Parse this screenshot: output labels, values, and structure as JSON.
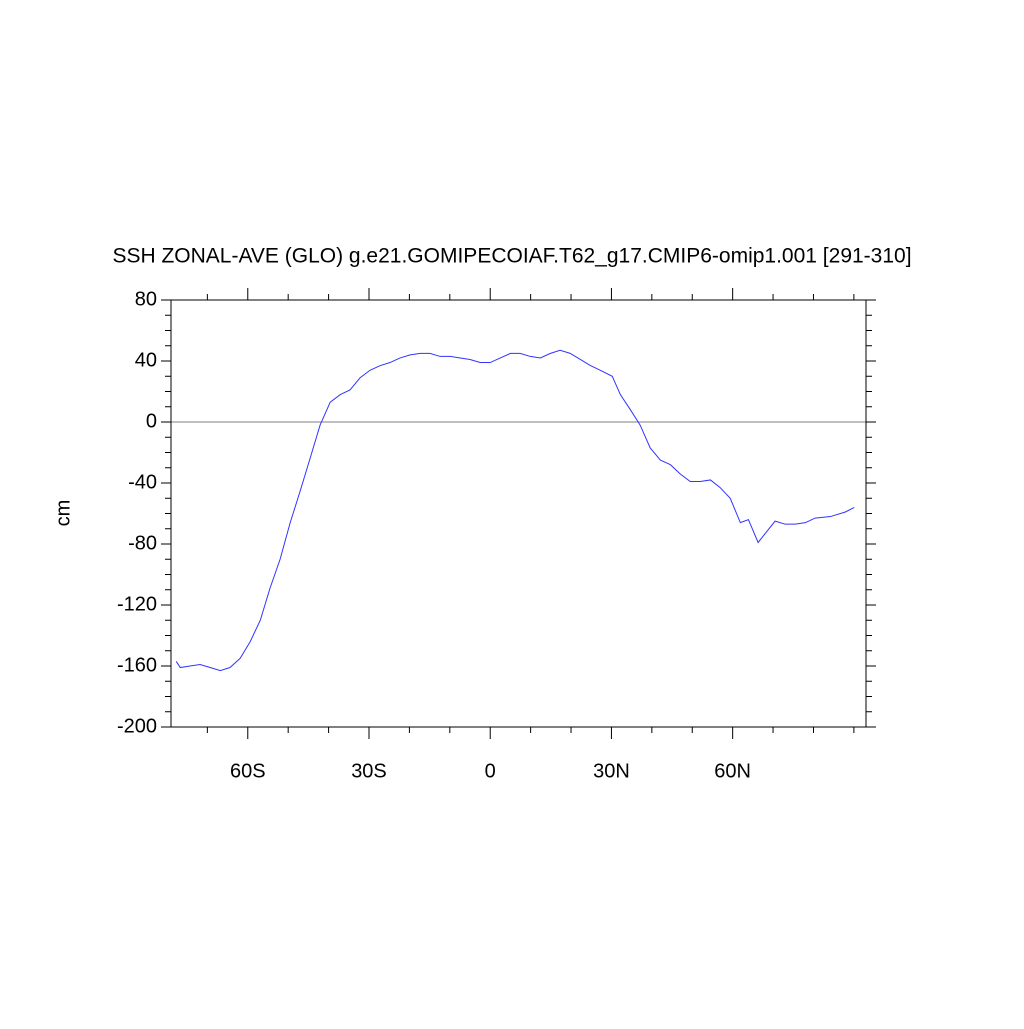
{
  "chart_data": {
    "type": "line",
    "title": "SSH ZONAL-AVE (GLO) g.e21.GOMIPECOIAF.T62_g17.CMIP6-omip1.001 [291-310]",
    "y_label": "cm",
    "x": [
      -77.7,
      -76.7,
      -74.3,
      -71.8,
      -69.3,
      -66.8,
      -64.4,
      -61.9,
      -59.4,
      -56.9,
      -54.5,
      -52,
      -49.5,
      -47,
      -44.6,
      -42.1,
      -39.6,
      -37.1,
      -34.7,
      -32.2,
      -29.7,
      -27.2,
      -24.8,
      -22.3,
      -19.8,
      -17.3,
      -14.9,
      -12.4,
      -9.9,
      -7.4,
      -5,
      -2.5,
      0,
      2.5,
      5,
      7.4,
      9.9,
      12.4,
      14.9,
      17.3,
      19.8,
      22.3,
      24.8,
      27.2,
      30.2,
      32.2,
      34.7,
      37.1,
      39.6,
      42.1,
      44.6,
      47,
      49.5,
      52,
      54.5,
      56.9,
      59.4,
      61.9,
      63.9,
      66.3,
      68.1,
      70.5,
      73,
      75.5,
      78,
      80.4,
      84.2,
      87.9,
      90.1
    ],
    "series": [
      {
        "name": "SSH",
        "color": "#3333ff",
        "values": [
          -157,
          -161,
          -160,
          -159,
          -161,
          -163,
          -161,
          -155,
          -144,
          -130,
          -109,
          -90,
          -66,
          -45,
          -24,
          -2,
          13,
          18,
          21,
          29,
          34,
          37,
          39,
          42,
          44,
          45,
          45,
          43,
          43,
          42,
          41,
          39,
          39,
          42,
          45,
          45,
          43,
          42,
          45,
          47,
          45,
          41,
          37,
          34,
          30,
          18,
          8,
          -2,
          -17,
          -25,
          -28,
          -34,
          -39,
          -39,
          -38,
          -43,
          -50,
          -66,
          -64,
          -79,
          -73,
          -65,
          -67,
          -67,
          -66,
          -63,
          -62,
          -59,
          -56
        ]
      }
    ],
    "xlim": [
      -79,
      93
    ],
    "ylim": [
      -200,
      80
    ],
    "xticks": [
      {
        "value": -60,
        "label": "60S"
      },
      {
        "value": -30,
        "label": "30S"
      },
      0,
      {
        "value": 30,
        "label": "30N"
      },
      {
        "value": 60,
        "label": "60N"
      }
    ],
    "yticks": [
      -200,
      -160,
      -120,
      -80,
      -40,
      0,
      40,
      80
    ],
    "xminorticks": [
      -70,
      -50,
      -40,
      -20,
      -10,
      10,
      20,
      40,
      50,
      70,
      80,
      90
    ],
    "yminorticks": [
      -190,
      -180,
      -170,
      -150,
      -140,
      -130,
      -110,
      -100,
      -90,
      -70,
      -60,
      -50,
      -30,
      -20,
      -10,
      10,
      20,
      30,
      50,
      60,
      70
    ],
    "reference_line": 0,
    "reference_line_color": "#808080"
  }
}
